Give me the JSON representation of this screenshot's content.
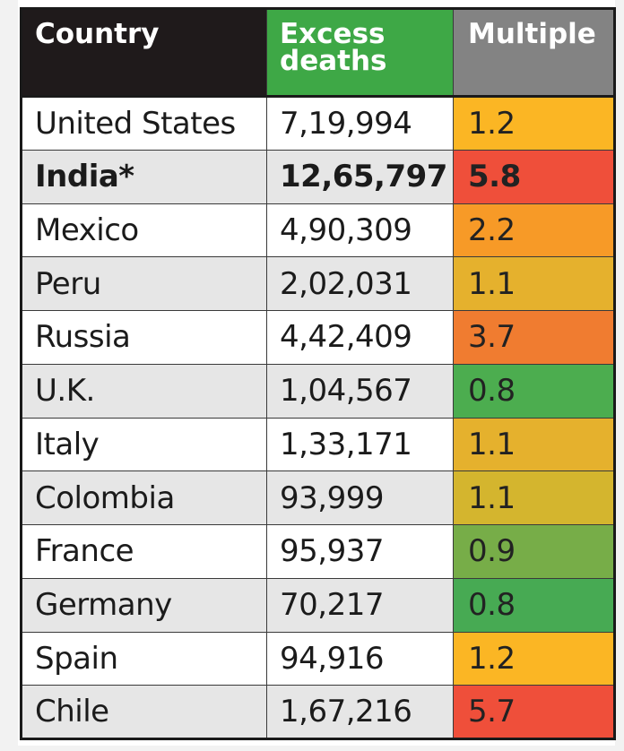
{
  "table": {
    "headers": {
      "country": "Country",
      "excess_deaths": "Excess deaths",
      "multiple": "Multiple"
    },
    "rows": [
      {
        "country": "United States",
        "excess_deaths": "7,19,994",
        "multiple": "1.2",
        "color": "#fbb624",
        "bold": false
      },
      {
        "country": "India*",
        "excess_deaths": "12,65,797",
        "multiple": "5.8",
        "color": "#ef4f3a",
        "bold": true
      },
      {
        "country": "Mexico",
        "excess_deaths": "4,90,309",
        "multiple": "2.2",
        "color": "#f79a27",
        "bold": false
      },
      {
        "country": "Peru",
        "excess_deaths": "2,02,031",
        "multiple": "1.1",
        "color": "#e5b12d",
        "bold": false
      },
      {
        "country": "Russia",
        "excess_deaths": "4,42,409",
        "multiple": "3.7",
        "color": "#f07c30",
        "bold": false
      },
      {
        "country": "U.K.",
        "excess_deaths": "1,04,567",
        "multiple": "0.8",
        "color": "#4cad4f",
        "bold": false
      },
      {
        "country": "Italy",
        "excess_deaths": "1,33,171",
        "multiple": "1.1",
        "color": "#e5b12d",
        "bold": false
      },
      {
        "country": "Colombia",
        "excess_deaths": "93,999",
        "multiple": "1.1",
        "color": "#d4b52e",
        "bold": false
      },
      {
        "country": "France",
        "excess_deaths": "95,937",
        "multiple": "0.9",
        "color": "#77ad48",
        "bold": false
      },
      {
        "country": "Germany",
        "excess_deaths": "70,217",
        "multiple": "0.8",
        "color": "#47aa53",
        "bold": false
      },
      {
        "country": "Spain",
        "excess_deaths": "94,916",
        "multiple": "1.2",
        "color": "#fbb624",
        "bold": false
      },
      {
        "country": "Chile",
        "excess_deaths": "1,67,216",
        "multiple": "5.7",
        "color": "#ef4f3a",
        "bold": false
      }
    ]
  }
}
